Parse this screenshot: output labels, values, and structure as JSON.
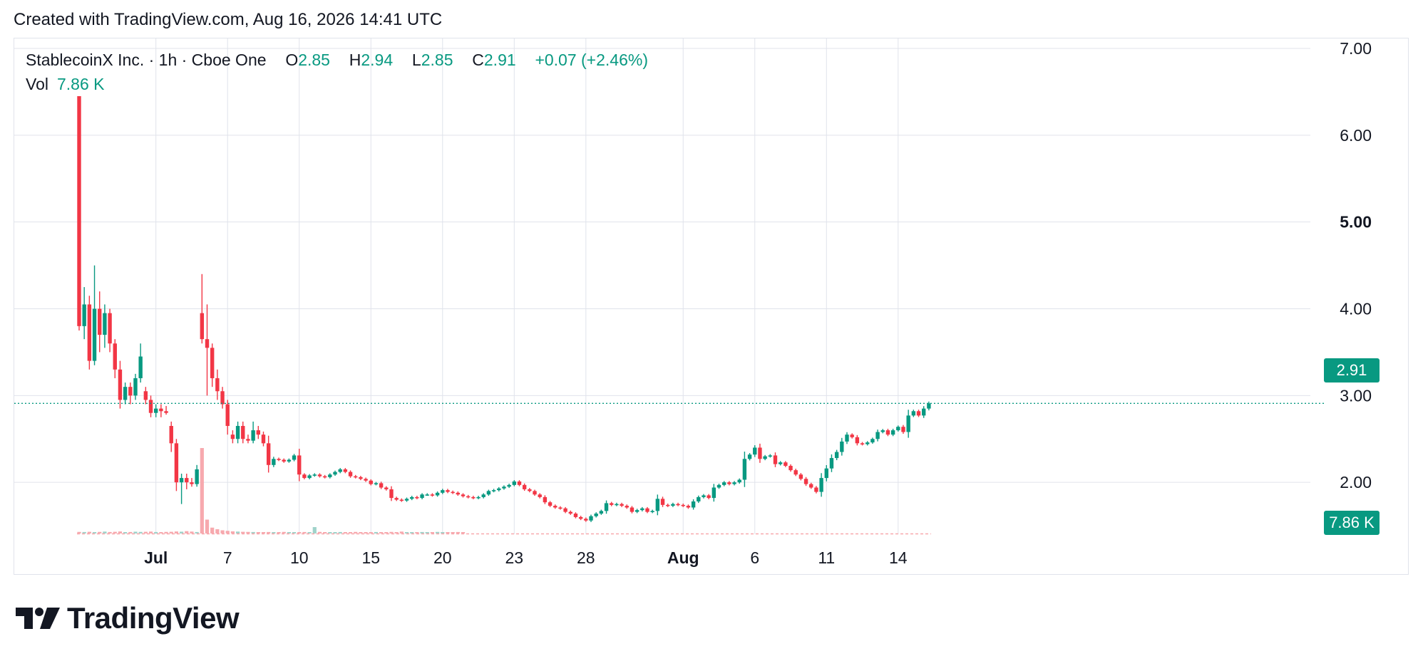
{
  "header": {
    "created_text": "Created with TradingView.com, Aug 16, 2026 14:41 UTC"
  },
  "legend": {
    "symbol": "StablecoinX Inc. · 1h · Cboe One",
    "o_label": "O",
    "o_value": "2.85",
    "h_label": "H",
    "h_value": "2.94",
    "l_label": "L",
    "l_value": "2.85",
    "c_label": "C",
    "c_value": "2.91",
    "change": "+0.07 (+2.46%)",
    "vol_label": "Vol",
    "vol_value": "7.86 K"
  },
  "price_badge": {
    "text": "2.91"
  },
  "volume_badge": {
    "text": "7.86 K"
  },
  "footer": {
    "brand": "TradingView"
  },
  "colors": {
    "up": "#089981",
    "down": "#f23645",
    "up_volume": "#9fd3ca",
    "down_volume": "#f7a9ae",
    "grid": "#e0e3eb"
  },
  "chart_data": {
    "type": "candlestick",
    "title": "StablecoinX Inc. · 1h · Cboe One",
    "ylim": [
      1.55,
      7.0
    ],
    "y_ticks": [
      {
        "value": 7.0,
        "label": "7.00",
        "bold": false
      },
      {
        "value": 6.0,
        "label": "6.00",
        "bold": false
      },
      {
        "value": 5.0,
        "label": "5.00",
        "bold": true
      },
      {
        "value": 4.0,
        "label": "4.00",
        "bold": false
      },
      {
        "value": 3.0,
        "label": "3.00",
        "bold": false
      },
      {
        "value": 2.0,
        "label": "2.00",
        "bold": false
      }
    ],
    "x_ticks": [
      {
        "label": "Jul",
        "i": 15,
        "bold": true
      },
      {
        "label": "7",
        "i": 29,
        "bold": false
      },
      {
        "label": "10",
        "i": 43,
        "bold": false
      },
      {
        "label": "15",
        "i": 57,
        "bold": false
      },
      {
        "label": "20",
        "i": 71,
        "bold": false
      },
      {
        "label": "23",
        "i": 85,
        "bold": false
      },
      {
        "label": "28",
        "i": 99,
        "bold": false
      },
      {
        "label": "Aug",
        "i": 118,
        "bold": true
      },
      {
        "label": "6",
        "i": 132,
        "bold": false
      },
      {
        "label": "11",
        "i": 146,
        "bold": false
      },
      {
        "label": "14",
        "i": 160,
        "bold": false
      }
    ],
    "last_price": 2.91,
    "candles": [
      [
        6.45,
        6.45,
        3.75,
        3.8
      ],
      [
        3.8,
        4.25,
        3.65,
        4.05
      ],
      [
        4.05,
        4.15,
        3.3,
        3.4
      ],
      [
        3.4,
        4.5,
        3.35,
        4.0
      ],
      [
        4.0,
        4.2,
        3.5,
        3.7
      ],
      [
        3.7,
        4.05,
        3.55,
        3.95
      ],
      [
        3.95,
        4.0,
        3.5,
        3.6
      ],
      [
        3.6,
        3.65,
        3.2,
        3.3
      ],
      [
        3.3,
        3.4,
        2.85,
        2.95
      ],
      [
        2.95,
        3.15,
        2.9,
        3.1
      ],
      [
        3.1,
        3.15,
        2.9,
        3.0
      ],
      [
        3.0,
        3.25,
        2.95,
        3.2
      ],
      [
        3.2,
        3.6,
        3.15,
        3.45
      ],
      [
        3.05,
        3.1,
        2.9,
        2.95
      ],
      [
        2.95,
        3.0,
        2.75,
        2.8
      ],
      [
        2.8,
        2.9,
        2.75,
        2.85
      ],
      [
        2.85,
        2.9,
        2.75,
        2.82
      ],
      [
        2.82,
        2.88,
        2.78,
        2.8
      ],
      [
        2.65,
        2.7,
        2.35,
        2.45
      ],
      [
        2.45,
        2.5,
        1.9,
        2.0
      ],
      [
        2.0,
        2.1,
        1.75,
        2.05
      ],
      [
        2.05,
        2.1,
        1.92,
        2.0
      ],
      [
        2.0,
        2.05,
        1.95,
        1.98
      ],
      [
        1.98,
        2.2,
        1.95,
        2.15
      ],
      [
        3.95,
        4.4,
        3.6,
        3.65
      ],
      [
        3.65,
        4.05,
        3.0,
        3.55
      ],
      [
        3.55,
        3.6,
        3.1,
        3.2
      ],
      [
        3.2,
        3.3,
        2.95,
        3.05
      ],
      [
        3.05,
        3.1,
        2.85,
        2.9
      ],
      [
        2.9,
        2.95,
        2.55,
        2.65
      ],
      [
        2.55,
        2.6,
        2.45,
        2.5
      ],
      [
        2.5,
        2.7,
        2.45,
        2.65
      ],
      [
        2.65,
        2.7,
        2.45,
        2.5
      ],
      [
        2.5,
        2.55,
        2.45,
        2.48
      ],
      [
        2.48,
        2.7,
        2.45,
        2.6
      ],
      [
        2.6,
        2.65,
        2.5,
        2.55
      ]
    ],
    "tail_closes": [
      2.45,
      2.2,
      2.27,
      2.26,
      2.24,
      2.26,
      2.31,
      2.09,
      2.05,
      2.08,
      2.09,
      2.07,
      2.06,
      2.09,
      2.12,
      2.15,
      2.12,
      2.07,
      2.06,
      2.04,
      2.02,
      1.98,
      1.99,
      1.94,
      1.92,
      1.82,
      1.8,
      1.79,
      1.81,
      1.83,
      1.82,
      1.86,
      1.86,
      1.85,
      1.88,
      1.91,
      1.89,
      1.88,
      1.86,
      1.84,
      1.83,
      1.82,
      1.83,
      1.86,
      1.9,
      1.91,
      1.93,
      1.95,
      1.97,
      2.01,
      1.97,
      1.92,
      1.9,
      1.86,
      1.83,
      1.77,
      1.73,
      1.71,
      1.7,
      1.66,
      1.64,
      1.6,
      1.58,
      1.56,
      1.61,
      1.64,
      1.67,
      1.76,
      1.74,
      1.75,
      1.73,
      1.71,
      1.66,
      1.68,
      1.7,
      1.66,
      1.67,
      1.81,
      1.74,
      1.73,
      1.75,
      1.74,
      1.73,
      1.71,
      1.78,
      1.83,
      1.85,
      1.82,
      1.94,
      1.97,
      2.0,
      1.98,
      2.0,
      2.03,
      2.27,
      2.32,
      2.4,
      2.27,
      2.3,
      2.31,
      2.21,
      2.23,
      2.19,
      2.14,
      2.09,
      2.04,
      1.98,
      1.94,
      1.89,
      2.05,
      2.16,
      2.28,
      2.35,
      2.47,
      2.55,
      2.52,
      2.45,
      2.44,
      2.46,
      2.5,
      2.58,
      2.6,
      2.55,
      2.6,
      2.64,
      2.58,
      2.77,
      2.82,
      2.77,
      2.85,
      2.91
    ],
    "volumes_k": [
      15,
      14,
      16,
      13,
      15,
      18,
      14,
      16,
      19,
      13,
      14,
      17,
      15,
      16,
      18,
      14,
      13,
      15,
      16,
      19,
      17,
      22,
      18,
      14,
      800,
      130,
      55,
      40,
      30,
      25,
      20,
      18,
      16,
      15,
      14,
      13
    ],
    "tail_volumes_k": [
      12,
      14,
      11,
      13,
      15,
      12,
      13,
      11,
      14,
      12,
      60,
      15,
      12,
      13,
      11,
      14,
      12,
      13,
      15,
      12,
      11,
      13,
      14,
      12,
      13,
      15,
      12,
      18,
      13,
      12,
      11,
      14,
      13,
      12,
      15,
      13,
      12,
      11,
      14,
      13
    ]
  }
}
